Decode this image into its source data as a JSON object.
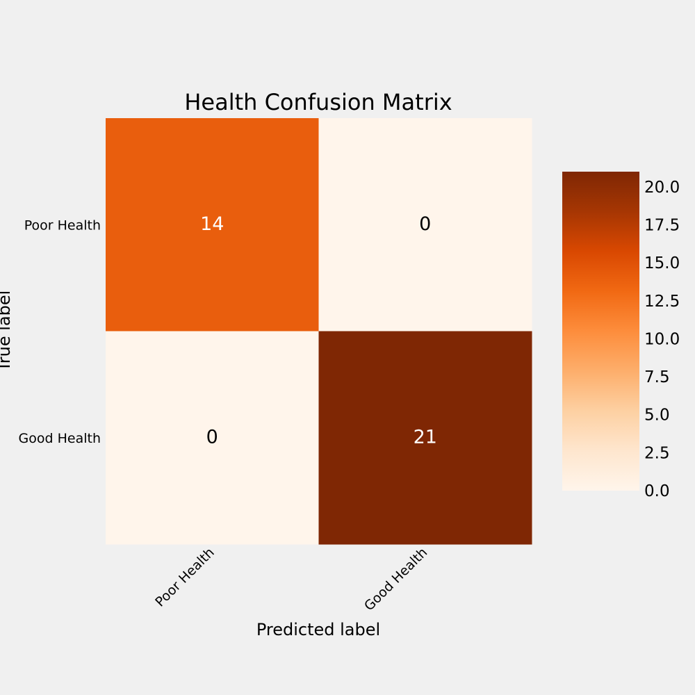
{
  "chart_data": {
    "type": "heatmap",
    "title": "Health Confusion Matrix",
    "xlabel": "Predicted label",
    "ylabel": "True label",
    "row_labels": [
      "Poor Health",
      "Good Health"
    ],
    "col_labels": [
      "Poor Health",
      "Good Health"
    ],
    "values": [
      [
        14,
        0
      ],
      [
        0,
        21
      ]
    ],
    "colormap": "Oranges",
    "colorbar": {
      "vmin": 0,
      "vmax": 21,
      "ticks": [
        "0.0",
        "2.5",
        "5.0",
        "7.5",
        "10.0",
        "12.5",
        "15.0",
        "17.5",
        "20.0"
      ]
    },
    "grid": false
  }
}
